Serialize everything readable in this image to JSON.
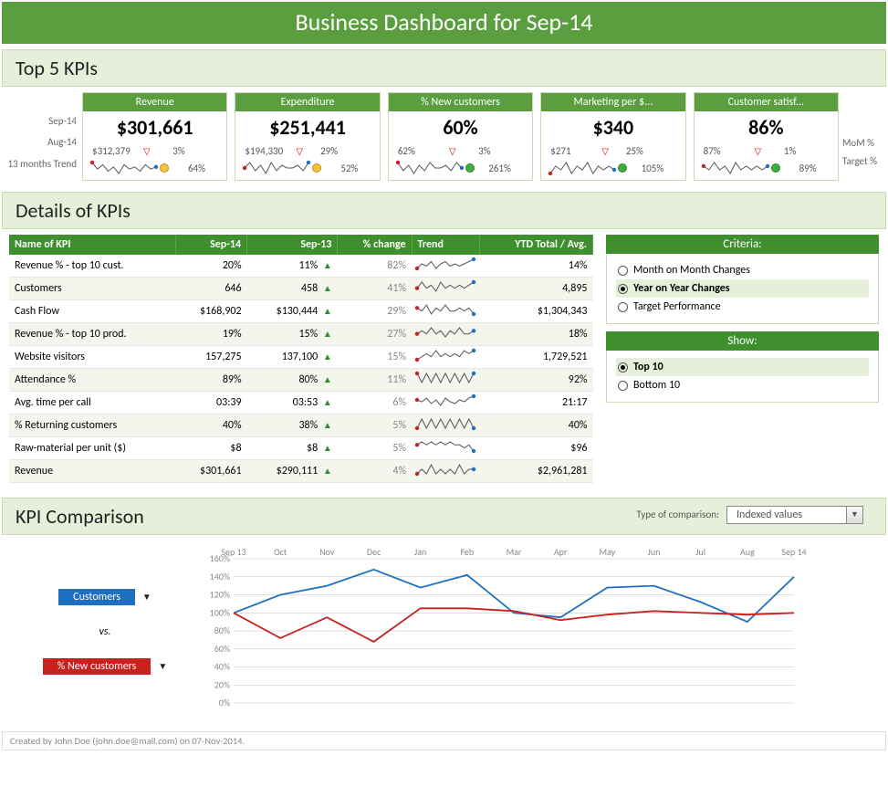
{
  "colors": {
    "brand_green": "#5a9e3f",
    "header_green": "#3f8f2f",
    "panel_bg": "#e6efda",
    "panel_border": "#c8dcb0",
    "series_blue": "#1f6fc0",
    "series_red": "#c9211e",
    "target_green": "#3fae3f",
    "target_yellow": "#f4c430"
  },
  "title": "Business Dashboard for Sep-14",
  "top5": {
    "heading": "Top 5 KPIs",
    "side_labels": {
      "current": "Sep-14",
      "prev": "Aug-14",
      "trend": "13 months Trend"
    },
    "right_labels": {
      "mom": "MoM %",
      "target": "Target %"
    },
    "cards": [
      {
        "title": "Revenue",
        "value": "$301,661",
        "prev": "$312,379",
        "mom_dir": "down",
        "mom_pct": "3%",
        "target_color": "#f4c430",
        "target_pct": "64%",
        "spark": [
          10,
          7,
          9,
          6,
          8,
          5,
          9,
          7,
          8,
          6,
          9,
          7,
          8
        ]
      },
      {
        "title": "Expenditure",
        "value": "$251,441",
        "prev": "$194,330",
        "mom_dir": "down",
        "mom_pct": "29%",
        "target_color": "#f4c430",
        "target_pct": "52%",
        "spark": [
          7,
          9,
          6,
          8,
          5,
          9,
          6,
          8,
          7,
          7,
          8,
          6,
          9
        ]
      },
      {
        "title": "% New customers",
        "value": "60%",
        "prev": "62%",
        "mom_dir": "down",
        "mom_pct": "3%",
        "target_color": "#3fae3f",
        "target_pct": "261%",
        "spark": [
          9,
          6,
          8,
          5,
          8,
          6,
          9,
          7,
          7,
          8,
          6,
          9,
          7
        ]
      },
      {
        "title": "Marketing per $...",
        "value": "$340",
        "prev": "$271",
        "mom_dir": "down",
        "mom_pct": "25%",
        "target_color": "#3fae3f",
        "target_pct": "105%",
        "spark": [
          6,
          8,
          7,
          9,
          6,
          8,
          7,
          9,
          6,
          8,
          7,
          8,
          7
        ]
      },
      {
        "title": "Customer satisf...",
        "value": "86%",
        "prev": "87%",
        "mom_dir": "down",
        "mom_pct": "1%",
        "target_color": "#3fae3f",
        "target_pct": "89%",
        "spark": [
          8,
          7,
          9,
          7,
          8,
          6,
          9,
          7,
          8,
          7,
          8,
          7,
          8
        ]
      }
    ]
  },
  "details": {
    "heading": "Details of KPIs",
    "columns": [
      "Name of KPI",
      "Sep-14",
      "Sep-13",
      "% change",
      "Trend",
      "YTD Total / Avg."
    ],
    "rows": [
      {
        "name": "Revenue % - top 10 cust.",
        "cur": "20%",
        "prev": "11%",
        "chg": "82%",
        "dir": "up",
        "ytd": "14%",
        "spark": [
          6,
          8,
          7,
          9,
          6,
          8,
          9,
          7,
          8,
          7,
          8,
          9,
          10
        ]
      },
      {
        "name": "Customers",
        "cur": "646",
        "prev": "458",
        "chg": "41%",
        "dir": "up",
        "ytd": "4,895",
        "spark": [
          7,
          9,
          7,
          8,
          6,
          9,
          7,
          8,
          7,
          8,
          7,
          8,
          9
        ]
      },
      {
        "name": "Cash Flow",
        "cur": "$168,902",
        "prev": "$130,444",
        "chg": "29%",
        "dir": "up",
        "ytd": "$1,304,343",
        "spark": [
          8,
          7,
          9,
          6,
          8,
          7,
          9,
          7,
          7,
          8,
          7,
          8,
          6
        ]
      },
      {
        "name": "Revenue % - top 10 prod.",
        "cur": "19%",
        "prev": "15%",
        "chg": "27%",
        "dir": "up",
        "ytd": "18%",
        "spark": [
          7,
          8,
          7,
          9,
          7,
          8,
          6,
          8,
          7,
          9,
          7,
          7,
          8
        ]
      },
      {
        "name": "Website visitors",
        "cur": "157,275",
        "prev": "137,100",
        "chg": "15%",
        "dir": "up",
        "ytd": "1,729,521",
        "spark": [
          6,
          7,
          8,
          7,
          9,
          7,
          8,
          7,
          8,
          7,
          9,
          8,
          9
        ]
      },
      {
        "name": "Attendance %",
        "cur": "89%",
        "prev": "80%",
        "chg": "11%",
        "dir": "up",
        "ytd": "92%",
        "spark": [
          8,
          7,
          8,
          7,
          8,
          7,
          8,
          7,
          8,
          7,
          8,
          7,
          8
        ]
      },
      {
        "name": "Avg. time per call",
        "cur": "03:39",
        "prev": "03:53",
        "chg": "6%",
        "dir": "up",
        "ytd": "21:17",
        "spark": [
          8,
          7,
          9,
          6,
          8,
          5,
          9,
          7,
          6,
          8,
          7,
          9,
          10
        ]
      },
      {
        "name": "% Returning customers",
        "cur": "40%",
        "prev": "38%",
        "chg": "5%",
        "dir": "up",
        "ytd": "40%",
        "spark": [
          7,
          8,
          7,
          8,
          7,
          8,
          7,
          8,
          7,
          8,
          7,
          8,
          7
        ]
      },
      {
        "name": "Raw-material per unit ($)",
        "cur": "$8",
        "prev": "$8",
        "chg": "5%",
        "dir": "up",
        "ytd": "$96",
        "spark": [
          8,
          9,
          8,
          9,
          8,
          9,
          8,
          9,
          8,
          8,
          7,
          8,
          6
        ]
      },
      {
        "name": "Revenue",
        "cur": "$301,661",
        "prev": "$290,111",
        "chg": "4%",
        "dir": "up",
        "ytd": "$2,961,281",
        "spark": [
          7,
          8,
          7,
          9,
          7,
          8,
          7,
          8,
          7,
          9,
          7,
          8,
          8
        ]
      }
    ],
    "criteria": {
      "heading": "Criteria:",
      "options": [
        {
          "label": "Month on Month Changes",
          "selected": false
        },
        {
          "label": "Year on Year Changes",
          "selected": true
        },
        {
          "label": "Target Performance",
          "selected": false
        }
      ]
    },
    "show": {
      "heading": "Show:",
      "options": [
        {
          "label": "Top 10",
          "selected": true
        },
        {
          "label": "Bottom 10",
          "selected": false
        }
      ]
    }
  },
  "compare": {
    "heading": "KPI Comparison",
    "type_label": "Type of comparison:",
    "type_value": "Indexed values",
    "vs_label": "vs.",
    "series_a": {
      "label": "Customers",
      "color": "#1f6fc0",
      "values": [
        100,
        120,
        130,
        148,
        128,
        142,
        100,
        95,
        128,
        130,
        112,
        90,
        140
      ]
    },
    "series_b": {
      "label": "% New customers",
      "color": "#c9211e",
      "values": [
        100,
        72,
        95,
        68,
        105,
        105,
        102,
        92,
        98,
        102,
        100,
        98,
        100
      ]
    },
    "x_labels": [
      "Sep 13",
      "Oct",
      "Nov",
      "Dec",
      "Jan",
      "Feb",
      "Mar",
      "Apr",
      "May",
      "Jun",
      "Jul",
      "Aug",
      "Sep 14"
    ],
    "y_ticks": [
      0,
      20,
      40,
      60,
      80,
      100,
      120,
      140,
      160
    ],
    "ylim": [
      0,
      160
    ],
    "axis_color": "#bfbfbf",
    "tick_font_size": 10
  },
  "footer": "Created by John Doe (john.doe@mail.com) on 07-Nov-2014."
}
